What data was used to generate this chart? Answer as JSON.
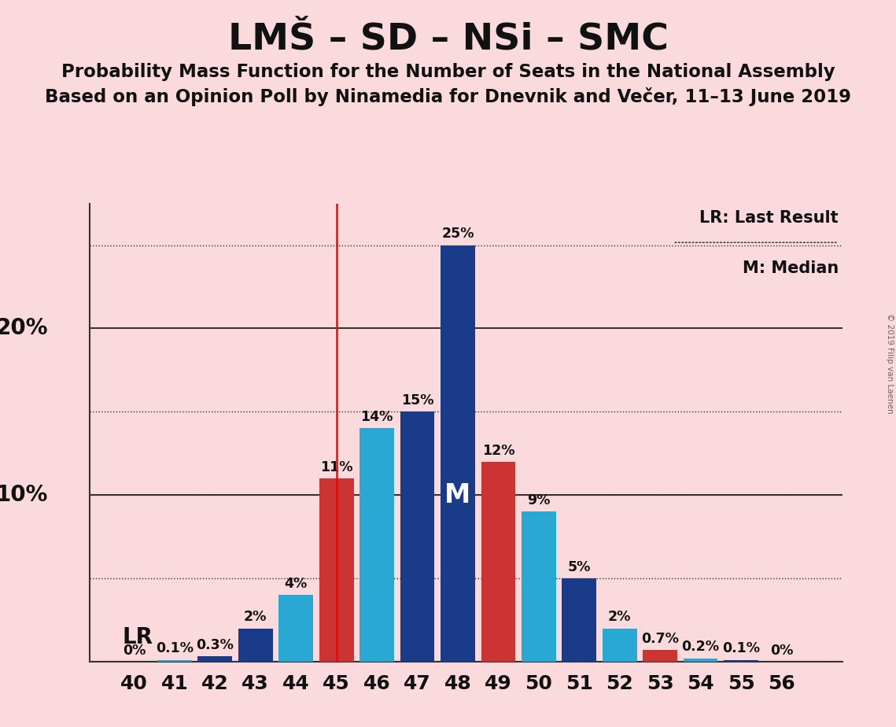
{
  "title": "LMŠ – SD – NSi – SMC",
  "subtitle1": "Probability Mass Function for the Number of Seats in the National Assembly",
  "subtitle2": "Based on an Opinion Poll by Ninamedia for Dnevnik and Večer, 11–13 June 2019",
  "copyright": "© 2019 Filip van Laenen",
  "seats": [
    40,
    41,
    42,
    43,
    44,
    45,
    46,
    47,
    48,
    49,
    50,
    51,
    52,
    53,
    54,
    55,
    56
  ],
  "values": [
    0.0,
    0.1,
    0.3,
    2.0,
    4.0,
    11.0,
    14.0,
    15.0,
    25.0,
    12.0,
    9.0,
    5.0,
    2.0,
    0.7,
    0.2,
    0.1,
    0.0
  ],
  "labels": [
    "0%",
    "0.1%",
    "0.3%",
    "2%",
    "4%",
    "11%",
    "14%",
    "15%",
    "25%",
    "12%",
    "9%",
    "5%",
    "2%",
    "0.7%",
    "0.2%",
    "0.1%",
    "0%"
  ],
  "bar_colors": [
    "#1a3a8a",
    "#29a8d4",
    "#1a3a8a",
    "#1a3a8a",
    "#29a8d4",
    "#cc3333",
    "#29a8d4",
    "#1a3a8a",
    "#1a3a8a",
    "#cc3333",
    "#29a8d4",
    "#1a3a8a",
    "#29a8d4",
    "#cc3333",
    "#29a8d4",
    "#1a3a8a",
    "#29a8d4"
  ],
  "lr_seat": 45,
  "median_seat": 48,
  "background_color": "#fadadd",
  "grid_levels": [
    5.0,
    10.0,
    15.0,
    25.0
  ],
  "solid_line_levels": [
    10.0,
    20.0
  ],
  "lr_label": "LR",
  "median_label": "M",
  "legend_lr": "LR: Last Result",
  "legend_m": "M: Median",
  "ylim_max": 27.5,
  "xlim_min": 38.9,
  "xlim_max": 57.5,
  "bar_width": 0.85
}
